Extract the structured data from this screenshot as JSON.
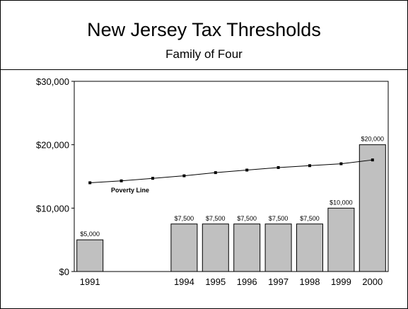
{
  "header": {
    "title": "New Jersey Tax Thresholds",
    "subtitle": "Family of Four"
  },
  "colors": {
    "bar_fill": "#c0c0c0",
    "bar_stroke": "#000000",
    "line": "#000000",
    "background": "#ffffff"
  },
  "chart_data": {
    "type": "bar",
    "title": "New Jersey Tax Thresholds",
    "subtitle": "Family of Four",
    "xlabel": "",
    "ylabel": "",
    "ylim": [
      0,
      30000
    ],
    "y_ticks": [
      0,
      10000,
      20000,
      30000
    ],
    "y_tick_labels": [
      "$0",
      "$10,000",
      "$20,000",
      "$30,000"
    ],
    "grid": false,
    "categories": [
      "1991",
      "",
      "",
      "1994",
      "1995",
      "1996",
      "1997",
      "1998",
      "1999",
      "2000"
    ],
    "series": [
      {
        "type": "bar",
        "values": [
          5000,
          null,
          null,
          7500,
          7500,
          7500,
          7500,
          7500,
          10000,
          20000
        ],
        "data_labels": [
          "$5,000",
          "",
          "",
          "$7,500",
          "$7,500",
          "$7,500",
          "$7,500",
          "$7,500",
          "$10,000",
          "$20,000"
        ]
      },
      {
        "type": "line",
        "name": "Poverty Line",
        "values": [
          14000,
          14300,
          14700,
          15100,
          15600,
          16000,
          16400,
          16700,
          17000,
          17600
        ]
      }
    ],
    "annotations": [
      "Poverty Line"
    ]
  }
}
